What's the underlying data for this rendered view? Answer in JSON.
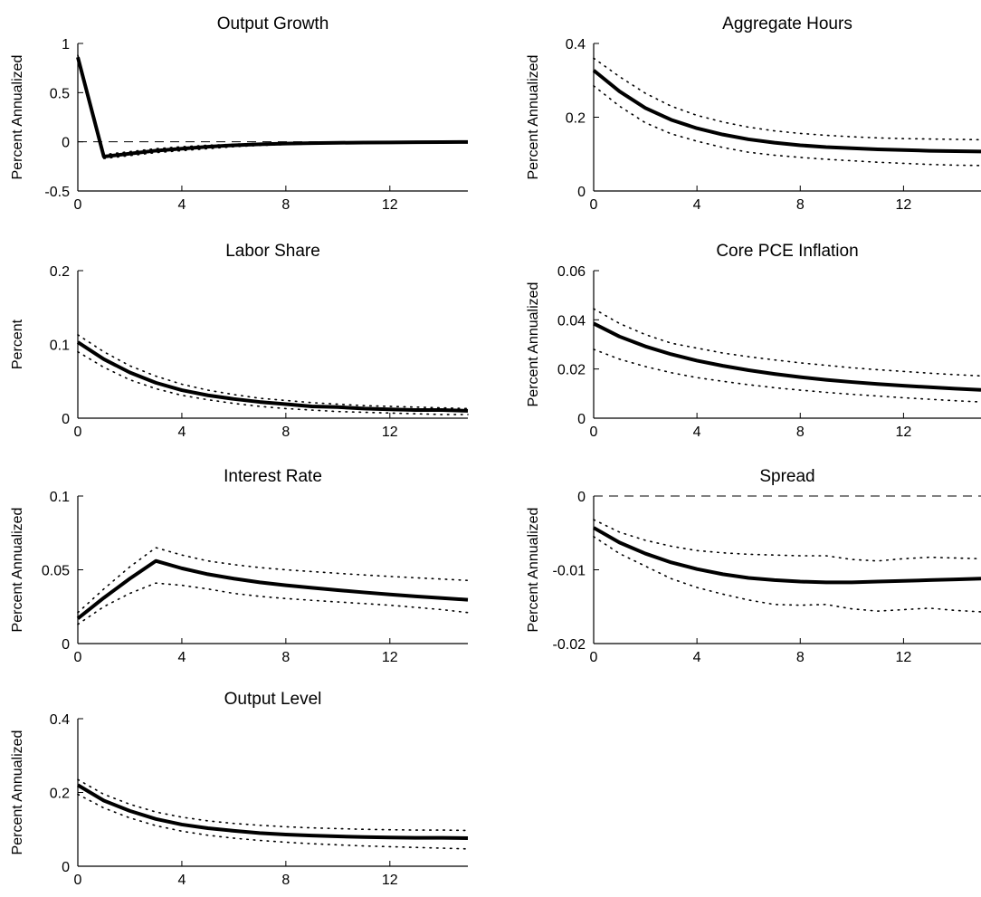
{
  "chart_data": [
    {
      "type": "line",
      "title": "Output Growth",
      "ylabel": "Percent Annualized",
      "xlabel": "",
      "xlim": [
        0,
        15
      ],
      "ylim": [
        -0.5,
        1
      ],
      "xticks": [
        "0",
        "4",
        "8",
        "12"
      ],
      "yticks": [
        "-0.5",
        "0",
        "0.5",
        "1"
      ],
      "zero_line": true,
      "x": [
        0,
        1,
        2,
        3,
        4,
        5,
        6,
        7,
        8,
        9,
        10,
        11,
        12,
        13,
        14,
        15
      ],
      "series": [
        {
          "role": "median",
          "style": "solid",
          "values": [
            0.86,
            -0.15,
            -0.12,
            -0.09,
            -0.07,
            -0.05,
            -0.035,
            -0.025,
            -0.018,
            -0.013,
            -0.01,
            -0.008,
            -0.006,
            -0.004,
            -0.003,
            -0.002
          ]
        },
        {
          "role": "upper",
          "style": "dotted",
          "values": [
            0.88,
            -0.13,
            -0.1,
            -0.07,
            -0.05,
            -0.035,
            -0.025,
            -0.015,
            -0.01,
            -0.006,
            -0.004,
            -0.002,
            0.0,
            0.002,
            0.003,
            0.004
          ]
        },
        {
          "role": "lower",
          "style": "dotted",
          "values": [
            0.83,
            -0.17,
            -0.14,
            -0.11,
            -0.09,
            -0.07,
            -0.05,
            -0.037,
            -0.028,
            -0.022,
            -0.017,
            -0.014,
            -0.012,
            -0.01,
            -0.009,
            -0.008
          ]
        }
      ]
    },
    {
      "type": "line",
      "title": "Aggregate Hours",
      "ylabel": "Percent Annualized",
      "xlabel": "",
      "xlim": [
        0,
        15
      ],
      "ylim": [
        0,
        0.4
      ],
      "xticks": [
        "0",
        "4",
        "8",
        "12"
      ],
      "yticks": [
        "0",
        "0.2",
        "0.4"
      ],
      "zero_line": true,
      "x": [
        0,
        1,
        2,
        3,
        4,
        5,
        6,
        7,
        8,
        9,
        10,
        11,
        12,
        13,
        14,
        15
      ],
      "series": [
        {
          "role": "median",
          "style": "solid",
          "values": [
            0.327,
            0.27,
            0.225,
            0.193,
            0.17,
            0.153,
            0.14,
            0.131,
            0.124,
            0.119,
            0.116,
            0.113,
            0.111,
            0.109,
            0.108,
            0.107
          ]
        },
        {
          "role": "upper",
          "style": "dotted",
          "values": [
            0.36,
            0.31,
            0.265,
            0.23,
            0.205,
            0.187,
            0.173,
            0.163,
            0.156,
            0.151,
            0.147,
            0.144,
            0.142,
            0.141,
            0.14,
            0.139
          ]
        },
        {
          "role": "lower",
          "style": "dotted",
          "values": [
            0.285,
            0.23,
            0.185,
            0.155,
            0.135,
            0.118,
            0.105,
            0.097,
            0.091,
            0.086,
            0.082,
            0.078,
            0.075,
            0.072,
            0.07,
            0.069
          ]
        }
      ]
    },
    {
      "type": "line",
      "title": "Labor Share",
      "ylabel": "Percent",
      "xlabel": "",
      "xlim": [
        0,
        15
      ],
      "ylim": [
        0,
        0.2
      ],
      "xticks": [
        "0",
        "4",
        "8",
        "12"
      ],
      "yticks": [
        "0",
        "0.1",
        "0.2"
      ],
      "zero_line": true,
      "x": [
        0,
        1,
        2,
        3,
        4,
        5,
        6,
        7,
        8,
        9,
        10,
        11,
        12,
        13,
        14,
        15
      ],
      "series": [
        {
          "role": "median",
          "style": "solid",
          "values": [
            0.103,
            0.08,
            0.062,
            0.048,
            0.038,
            0.031,
            0.026,
            0.022,
            0.019,
            0.016,
            0.015,
            0.013,
            0.012,
            0.011,
            0.011,
            0.01
          ]
        },
        {
          "role": "upper",
          "style": "dotted",
          "values": [
            0.113,
            0.09,
            0.071,
            0.057,
            0.046,
            0.038,
            0.032,
            0.027,
            0.024,
            0.021,
            0.019,
            0.017,
            0.016,
            0.015,
            0.014,
            0.013
          ]
        },
        {
          "role": "lower",
          "style": "dotted",
          "values": [
            0.09,
            0.069,
            0.052,
            0.04,
            0.031,
            0.025,
            0.02,
            0.016,
            0.013,
            0.011,
            0.009,
            0.008,
            0.007,
            0.006,
            0.005,
            0.005
          ]
        }
      ]
    },
    {
      "type": "line",
      "title": "Core PCE Inflation",
      "ylabel": "Percent Annualized",
      "xlabel": "",
      "xlim": [
        0,
        15
      ],
      "ylim": [
        0,
        0.06
      ],
      "xticks": [
        "0",
        "4",
        "8",
        "12"
      ],
      "yticks": [
        "0",
        "0.02",
        "0.04",
        "0.06"
      ],
      "zero_line": true,
      "x": [
        0,
        1,
        2,
        3,
        4,
        5,
        6,
        7,
        8,
        9,
        10,
        11,
        12,
        13,
        14,
        15
      ],
      "series": [
        {
          "role": "median",
          "style": "solid",
          "values": [
            0.0385,
            0.0332,
            0.0292,
            0.026,
            0.0234,
            0.0213,
            0.0195,
            0.018,
            0.0167,
            0.0156,
            0.0147,
            0.0139,
            0.0132,
            0.0126,
            0.012,
            0.0115
          ]
        },
        {
          "role": "upper",
          "style": "dotted",
          "values": [
            0.0445,
            0.0385,
            0.034,
            0.0305,
            0.0285,
            0.0265,
            0.025,
            0.0237,
            0.0225,
            0.0215,
            0.0205,
            0.0197,
            0.019,
            0.0183,
            0.0177,
            0.0172
          ]
        },
        {
          "role": "lower",
          "style": "dotted",
          "values": [
            0.028,
            0.024,
            0.021,
            0.0185,
            0.0165,
            0.015,
            0.0136,
            0.0124,
            0.0114,
            0.0105,
            0.0097,
            0.009,
            0.0083,
            0.0077,
            0.0071,
            0.0066
          ]
        }
      ]
    },
    {
      "type": "line",
      "title": "Interest Rate",
      "ylabel": "Percent Annualized",
      "xlabel": "",
      "xlim": [
        0,
        15
      ],
      "ylim": [
        0,
        0.1
      ],
      "xticks": [
        "0",
        "4",
        "8",
        "12"
      ],
      "yticks": [
        "0",
        "0.05",
        "0.1"
      ],
      "zero_line": true,
      "x": [
        0,
        1,
        2,
        3,
        4,
        5,
        6,
        7,
        8,
        9,
        10,
        11,
        12,
        13,
        14,
        15
      ],
      "series": [
        {
          "role": "median",
          "style": "solid",
          "values": [
            0.017,
            0.031,
            0.044,
            0.056,
            0.051,
            0.047,
            0.044,
            0.0415,
            0.0395,
            0.0378,
            0.0362,
            0.0347,
            0.0333,
            0.032,
            0.0308,
            0.0297
          ]
        },
        {
          "role": "upper",
          "style": "dotted",
          "values": [
            0.021,
            0.037,
            0.052,
            0.065,
            0.06,
            0.056,
            0.0535,
            0.0515,
            0.05,
            0.0488,
            0.0476,
            0.0465,
            0.0455,
            0.0446,
            0.0437,
            0.0428
          ]
        },
        {
          "role": "lower",
          "style": "dotted",
          "values": [
            0.013,
            0.025,
            0.034,
            0.041,
            0.0395,
            0.037,
            0.034,
            0.032,
            0.0305,
            0.0293,
            0.0282,
            0.0271,
            0.026,
            0.0245,
            0.023,
            0.021
          ]
        }
      ]
    },
    {
      "type": "line",
      "title": "Spread",
      "ylabel": "Percent Annualized",
      "xlabel": "",
      "xlim": [
        0,
        15
      ],
      "ylim": [
        -0.02,
        0
      ],
      "xticks": [
        "0",
        "4",
        "8",
        "12"
      ],
      "yticks": [
        "-0.02",
        "-0.01",
        "0"
      ],
      "zero_line": true,
      "x": [
        0,
        1,
        2,
        3,
        4,
        5,
        6,
        7,
        8,
        9,
        10,
        11,
        12,
        13,
        14,
        15
      ],
      "series": [
        {
          "role": "median",
          "style": "solid",
          "values": [
            -0.0043,
            -0.0063,
            -0.0078,
            -0.009,
            -0.0099,
            -0.0106,
            -0.0111,
            -0.0114,
            -0.0116,
            -0.0117,
            -0.0117,
            -0.0116,
            -0.0115,
            -0.0114,
            -0.0113,
            -0.0112
          ]
        },
        {
          "role": "upper",
          "style": "dotted",
          "values": [
            -0.0032,
            -0.0049,
            -0.006,
            -0.0068,
            -0.0074,
            -0.0077,
            -0.0079,
            -0.008,
            -0.0081,
            -0.0081,
            -0.0086,
            -0.0088,
            -0.0085,
            -0.0083,
            -0.0084,
            -0.0085
          ]
        },
        {
          "role": "lower",
          "style": "dotted",
          "values": [
            -0.0055,
            -0.0078,
            -0.0095,
            -0.0112,
            -0.0124,
            -0.0133,
            -0.0141,
            -0.0147,
            -0.0148,
            -0.0147,
            -0.0153,
            -0.0156,
            -0.0154,
            -0.0152,
            -0.0155,
            -0.0157
          ]
        }
      ]
    },
    {
      "type": "line",
      "title": "Output Level",
      "ylabel": "Percent Annualized",
      "xlabel": "",
      "xlim": [
        0,
        15
      ],
      "ylim": [
        0,
        0.4
      ],
      "xticks": [
        "0",
        "4",
        "8",
        "12"
      ],
      "yticks": [
        "0",
        "0.2",
        "0.4"
      ],
      "zero_line": true,
      "x": [
        0,
        1,
        2,
        3,
        4,
        5,
        6,
        7,
        8,
        9,
        10,
        11,
        12,
        13,
        14,
        15
      ],
      "series": [
        {
          "role": "median",
          "style": "solid",
          "values": [
            0.22,
            0.178,
            0.15,
            0.128,
            0.113,
            0.103,
            0.096,
            0.09,
            0.086,
            0.083,
            0.081,
            0.079,
            0.078,
            0.077,
            0.077,
            0.076
          ]
        },
        {
          "role": "upper",
          "style": "dotted",
          "values": [
            0.235,
            0.195,
            0.168,
            0.147,
            0.133,
            0.123,
            0.116,
            0.111,
            0.107,
            0.104,
            0.102,
            0.1,
            0.099,
            0.098,
            0.098,
            0.097
          ]
        },
        {
          "role": "lower",
          "style": "dotted",
          "values": [
            0.195,
            0.158,
            0.131,
            0.11,
            0.095,
            0.084,
            0.076,
            0.07,
            0.065,
            0.061,
            0.058,
            0.055,
            0.053,
            0.051,
            0.049,
            0.047
          ]
        }
      ]
    }
  ]
}
